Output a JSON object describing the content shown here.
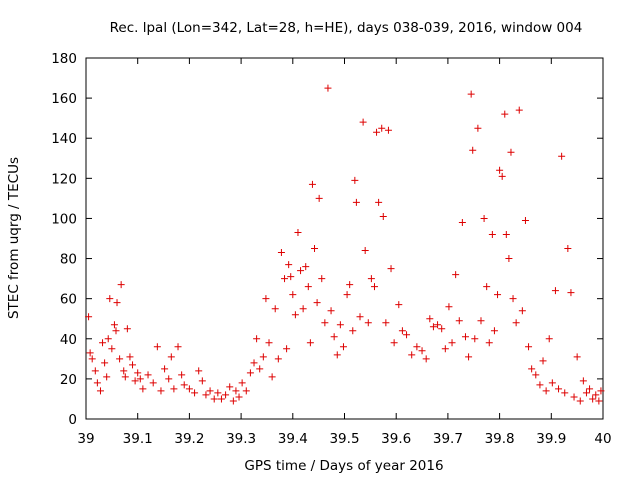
{
  "chart_data": {
    "type": "scatter",
    "title": "Rec. lpal (Lon=342, Lat=28, h=HE), days 038-039, 2016, window 004",
    "xlabel": "GPS time / Days of year 2016",
    "ylabel": "STEC from uqrg / TECUs",
    "xlim": [
      39,
      40
    ],
    "ylim": [
      0,
      180
    ],
    "xticks": [
      39,
      39.1,
      39.2,
      39.3,
      39.4,
      39.5,
      39.6,
      39.7,
      39.8,
      39.9,
      40
    ],
    "xtick_labels": [
      "39",
      "39.1",
      "39.2",
      "39.3",
      "39.4",
      "39.5",
      "39.6",
      "39.7",
      "39.8",
      "39.9",
      "40"
    ],
    "yticks": [
      0,
      20,
      40,
      60,
      80,
      100,
      120,
      140,
      160,
      180
    ],
    "ytick_labels": [
      "0",
      "20",
      "40",
      "60",
      "80",
      "100",
      "120",
      "140",
      "160",
      "180"
    ],
    "marker": "+",
    "color": "#dd0000",
    "grid": false,
    "legend": "none",
    "series": [
      {
        "name": "STEC",
        "points": [
          [
            39.005,
            51
          ],
          [
            39.008,
            33
          ],
          [
            39.012,
            30
          ],
          [
            39.018,
            24
          ],
          [
            39.022,
            18
          ],
          [
            39.028,
            14
          ],
          [
            39.032,
            38
          ],
          [
            39.036,
            28
          ],
          [
            39.04,
            21
          ],
          [
            39.043,
            40
          ],
          [
            39.046,
            60
          ],
          [
            39.05,
            35
          ],
          [
            39.055,
            47
          ],
          [
            39.058,
            44
          ],
          [
            39.06,
            58
          ],
          [
            39.065,
            30
          ],
          [
            39.068,
            67
          ],
          [
            39.073,
            24
          ],
          [
            39.076,
            21
          ],
          [
            39.08,
            45
          ],
          [
            39.085,
            31
          ],
          [
            39.09,
            27
          ],
          [
            39.095,
            19
          ],
          [
            39.1,
            23
          ],
          [
            39.105,
            20
          ],
          [
            39.11,
            15
          ],
          [
            39.12,
            22
          ],
          [
            39.13,
            18
          ],
          [
            39.138,
            36
          ],
          [
            39.145,
            14
          ],
          [
            39.152,
            25
          ],
          [
            39.16,
            20
          ],
          [
            39.165,
            31
          ],
          [
            39.17,
            15
          ],
          [
            39.178,
            36
          ],
          [
            39.185,
            22
          ],
          [
            39.19,
            17
          ],
          [
            39.2,
            15
          ],
          [
            39.21,
            13
          ],
          [
            39.218,
            24
          ],
          [
            39.225,
            19
          ],
          [
            39.232,
            12
          ],
          [
            39.24,
            14
          ],
          [
            39.248,
            10
          ],
          [
            39.255,
            13
          ],
          [
            39.262,
            10
          ],
          [
            39.27,
            12
          ],
          [
            39.278,
            16
          ],
          [
            39.285,
            9
          ],
          [
            39.29,
            14
          ],
          [
            39.296,
            11
          ],
          [
            39.302,
            18
          ],
          [
            39.31,
            14
          ],
          [
            39.318,
            23
          ],
          [
            39.325,
            28
          ],
          [
            39.33,
            40
          ],
          [
            39.336,
            25
          ],
          [
            39.343,
            31
          ],
          [
            39.348,
            60
          ],
          [
            39.354,
            38
          ],
          [
            39.36,
            21
          ],
          [
            39.366,
            55
          ],
          [
            39.372,
            30
          ],
          [
            39.378,
            83
          ],
          [
            39.384,
            70
          ],
          [
            39.388,
            35
          ],
          [
            39.392,
            77
          ],
          [
            39.396,
            71
          ],
          [
            39.4,
            62
          ],
          [
            39.405,
            52
          ],
          [
            39.41,
            93
          ],
          [
            39.415,
            74
          ],
          [
            39.42,
            55
          ],
          [
            39.425,
            76
          ],
          [
            39.43,
            66
          ],
          [
            39.434,
            38
          ],
          [
            39.438,
            117
          ],
          [
            39.442,
            85
          ],
          [
            39.447,
            58
          ],
          [
            39.451,
            110
          ],
          [
            39.456,
            70
          ],
          [
            39.462,
            48
          ],
          [
            39.468,
            165
          ],
          [
            39.474,
            54
          ],
          [
            39.48,
            41
          ],
          [
            39.486,
            32
          ],
          [
            39.492,
            47
          ],
          [
            39.498,
            36
          ],
          [
            39.505,
            62
          ],
          [
            39.51,
            67
          ],
          [
            39.516,
            44
          ],
          [
            39.52,
            119
          ],
          [
            39.523,
            108
          ],
          [
            39.53,
            51
          ],
          [
            39.536,
            148
          ],
          [
            39.54,
            84
          ],
          [
            39.546,
            48
          ],
          [
            39.552,
            70
          ],
          [
            39.558,
            66
          ],
          [
            39.562,
            143
          ],
          [
            39.566,
            108
          ],
          [
            39.572,
            145
          ],
          [
            39.575,
            101
          ],
          [
            39.58,
            48
          ],
          [
            39.585,
            144
          ],
          [
            39.59,
            75
          ],
          [
            39.596,
            38
          ],
          [
            39.605,
            57
          ],
          [
            39.612,
            44
          ],
          [
            39.62,
            42
          ],
          [
            39.63,
            32
          ],
          [
            39.64,
            36
          ],
          [
            39.65,
            34
          ],
          [
            39.658,
            30
          ],
          [
            39.665,
            50
          ],
          [
            39.672,
            46
          ],
          [
            39.68,
            47
          ],
          [
            39.688,
            45
          ],
          [
            39.695,
            35
          ],
          [
            39.702,
            56
          ],
          [
            39.708,
            38
          ],
          [
            39.715,
            72
          ],
          [
            39.722,
            49
          ],
          [
            39.728,
            98
          ],
          [
            39.734,
            41
          ],
          [
            39.74,
            31
          ],
          [
            39.745,
            162
          ],
          [
            39.748,
            134
          ],
          [
            39.752,
            40
          ],
          [
            39.758,
            145
          ],
          [
            39.764,
            49
          ],
          [
            39.77,
            100
          ],
          [
            39.775,
            66
          ],
          [
            39.78,
            38
          ],
          [
            39.786,
            92
          ],
          [
            39.79,
            44
          ],
          [
            39.796,
            62
          ],
          [
            39.8,
            124
          ],
          [
            39.805,
            121
          ],
          [
            39.81,
            152
          ],
          [
            39.813,
            92
          ],
          [
            39.818,
            80
          ],
          [
            39.822,
            133
          ],
          [
            39.826,
            60
          ],
          [
            39.832,
            48
          ],
          [
            39.838,
            154
          ],
          [
            39.844,
            54
          ],
          [
            39.85,
            99
          ],
          [
            39.856,
            36
          ],
          [
            39.862,
            25
          ],
          [
            39.87,
            22
          ],
          [
            39.878,
            17
          ],
          [
            39.884,
            29
          ],
          [
            39.89,
            14
          ],
          [
            39.896,
            40
          ],
          [
            39.902,
            18
          ],
          [
            39.908,
            64
          ],
          [
            39.914,
            15
          ],
          [
            39.92,
            131
          ],
          [
            39.926,
            13
          ],
          [
            39.932,
            85
          ],
          [
            39.938,
            63
          ],
          [
            39.944,
            11
          ],
          [
            39.95,
            31
          ],
          [
            39.956,
            9
          ],
          [
            39.962,
            19
          ],
          [
            39.968,
            13
          ],
          [
            39.974,
            15
          ],
          [
            39.98,
            10
          ],
          [
            39.986,
            12
          ],
          [
            39.992,
            9
          ],
          [
            39.996,
            14
          ]
        ]
      }
    ]
  }
}
